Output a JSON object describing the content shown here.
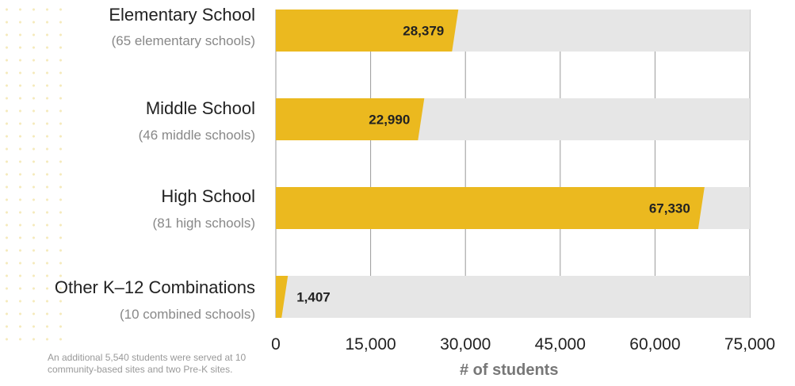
{
  "chart_data": {
    "type": "bar",
    "orientation": "horizontal",
    "categories": [
      "Elementary School",
      "Middle School",
      "High School",
      "Other K–12 Combinations"
    ],
    "subtitles": [
      "(65 elementary schools)",
      "(46 middle schools)",
      "(81 high schools)",
      "(10 combined schools)"
    ],
    "values": [
      28379,
      22990,
      67330,
      1407
    ],
    "value_labels": [
      "28,379",
      "22,990",
      "67,330",
      "1,407"
    ],
    "xlim": [
      0,
      75000
    ],
    "xticks": [
      0,
      15000,
      30000,
      45000,
      60000,
      75000
    ],
    "xtick_labels": [
      "0",
      "15,000",
      "30,000",
      "45,000",
      "60,000",
      "75,000"
    ],
    "xlabel": "# of students",
    "grid": "vertical",
    "bar_color": "#ebb91f",
    "track_color": "#e6e6e6"
  },
  "footnote": "An additional 5,540 students were served at 10 community-based sites and two Pre-K sites."
}
